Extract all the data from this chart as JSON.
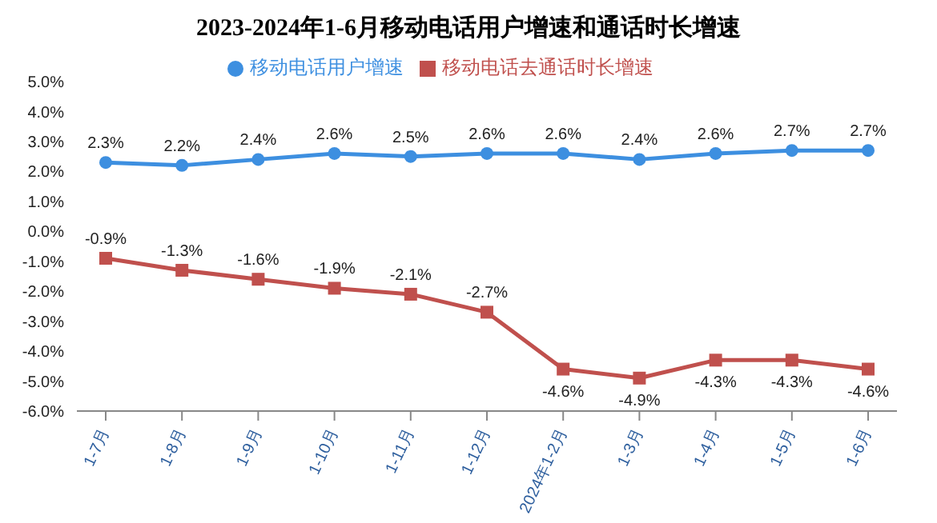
{
  "chart_data": {
    "type": "line",
    "title": "2023-2024年1-6月移动电话用户增速和通话时长增速",
    "categories": [
      "1-7月",
      "1-8月",
      "1-9月",
      "1-10月",
      "1-11月",
      "1-12月",
      "2024年1-2月",
      "1-3月",
      "1-4月",
      "1-5月",
      "1-6月"
    ],
    "series": [
      {
        "name": "移动电话用户增速",
        "color": "#3d8fe0",
        "marker": "circle",
        "values": [
          2.3,
          2.2,
          2.4,
          2.6,
          2.5,
          2.6,
          2.6,
          2.4,
          2.6,
          2.7,
          2.7
        ],
        "value_labels": [
          "2.3%",
          "2.2%",
          "2.4%",
          "2.6%",
          "2.5%",
          "2.6%",
          "2.6%",
          "2.4%",
          "2.6%",
          "2.7%",
          "2.7%"
        ]
      },
      {
        "name": "移动电话去通话时长增速",
        "color": "#c0504d",
        "marker": "square",
        "values": [
          -0.9,
          -1.3,
          -1.6,
          -1.9,
          -2.1,
          -2.7,
          -4.6,
          -4.9,
          -4.3,
          -4.3,
          -4.6
        ],
        "value_labels": [
          "-0.9%",
          "-1.3%",
          "-1.6%",
          "-1.9%",
          "-2.1%",
          "-2.7%",
          "-4.6%",
          "-4.9%",
          "-4.3%",
          "-4.3%",
          "-4.6%"
        ]
      }
    ],
    "ylim": [
      -6,
      5
    ],
    "yticks": [
      {
        "value": 5,
        "label": "5.0%"
      },
      {
        "value": 4,
        "label": "4.0%"
      },
      {
        "value": 3,
        "label": "3.0%"
      },
      {
        "value": 2,
        "label": "2.0%"
      },
      {
        "value": 1,
        "label": "1.0%"
      },
      {
        "value": 0,
        "label": "0.0%"
      },
      {
        "value": -1,
        "label": "-1.0%"
      },
      {
        "value": -2,
        "label": "-2.0%"
      },
      {
        "value": -3,
        "label": "-3.0%"
      },
      {
        "value": -4,
        "label": "-4.0%"
      },
      {
        "value": -5,
        "label": "-5.0%"
      },
      {
        "value": -6,
        "label": "-6.0%"
      }
    ],
    "legend": "top",
    "grid": false,
    "line_style": "solid"
  }
}
